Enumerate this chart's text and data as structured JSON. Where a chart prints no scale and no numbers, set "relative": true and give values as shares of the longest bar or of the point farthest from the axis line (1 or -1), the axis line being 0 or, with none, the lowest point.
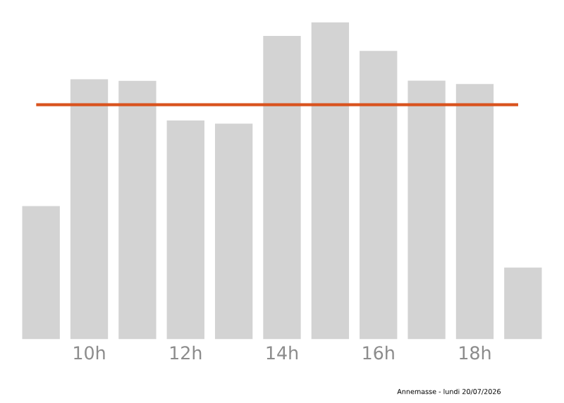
{
  "chart_data": {
    "type": "bar",
    "relative": true,
    "categories": [
      null,
      "10h",
      null,
      "12h",
      null,
      "14h",
      null,
      "16h",
      null,
      "18h",
      null
    ],
    "values": [
      0.42,
      0.82,
      0.815,
      0.69,
      0.68,
      0.957,
      1,
      0.91,
      0.816,
      0.805,
      0.226
    ],
    "color": "#d3d3d3",
    "ref_lines": [
      {
        "axis": "y",
        "value": 0.74,
        "color": "#d9531e"
      }
    ],
    "annotations": [
      "Annemasse - lundi 20/07/2026"
    ]
  }
}
